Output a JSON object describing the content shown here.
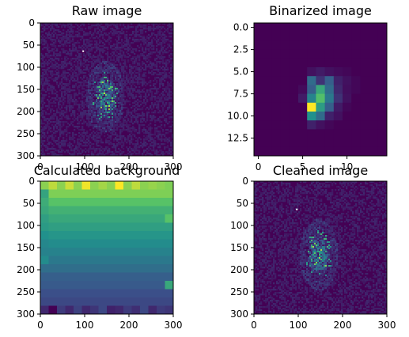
{
  "chart_data": [
    {
      "type": "heatmap",
      "title": "Raw image",
      "colormap": "viridis",
      "xlim": [
        0,
        300
      ],
      "ylim": [
        300,
        0
      ],
      "xticks": [
        "0",
        "100",
        "200",
        "300"
      ],
      "yticks": [
        "0",
        "50",
        "100",
        "150",
        "200",
        "250",
        "300"
      ],
      "blob_center": [
        145,
        165
      ]
    },
    {
      "type": "heatmap",
      "title": "Binarized image",
      "colormap": "viridis",
      "xlim": [
        -0.5,
        14.5
      ],
      "ylim": [
        14.5,
        -0.5
      ],
      "xticks": [
        "0",
        "5",
        "10"
      ],
      "yticks": [
        "0.0",
        "2.5",
        "5.0",
        "7.5",
        "10.0",
        "12.5"
      ],
      "grid_values": [
        [
          0,
          0,
          0,
          0,
          0,
          0,
          0,
          0,
          0,
          0,
          0,
          0,
          0,
          0,
          0
        ],
        [
          0,
          0,
          0,
          0,
          0,
          0,
          0,
          0,
          0,
          0,
          0,
          0,
          0,
          0,
          0
        ],
        [
          0,
          0,
          0,
          0,
          0,
          0,
          0,
          0,
          0,
          0,
          0,
          0,
          0,
          0,
          0
        ],
        [
          0,
          0,
          0,
          0,
          0,
          0,
          0,
          0,
          0,
          0,
          0,
          0,
          0,
          0,
          0
        ],
        [
          0,
          0,
          0,
          0,
          0,
          0,
          0,
          0,
          0,
          0,
          0,
          0,
          0,
          0,
          0
        ],
        [
          0,
          0,
          0,
          0,
          0,
          0,
          0.05,
          0.08,
          0.05,
          0.03,
          0.02,
          0,
          0,
          0,
          0
        ],
        [
          0,
          0,
          0,
          0,
          0,
          0,
          0.35,
          0.15,
          0.3,
          0.1,
          0.05,
          0.02,
          0,
          0,
          0
        ],
        [
          0,
          0,
          0,
          0,
          0,
          0.03,
          0.3,
          0.6,
          0.35,
          0.12,
          0.04,
          0.02,
          0,
          0,
          0
        ],
        [
          0,
          0,
          0,
          0,
          0,
          0.08,
          0.45,
          0.7,
          0.4,
          0.15,
          0.05,
          0,
          0,
          0,
          0
        ],
        [
          0,
          0,
          0,
          0,
          0,
          0,
          1.0,
          0.55,
          0.3,
          0.08,
          0.02,
          0,
          0,
          0,
          0
        ],
        [
          0,
          0,
          0,
          0,
          0,
          0,
          0.5,
          0.35,
          0.1,
          0.05,
          0,
          0,
          0,
          0,
          0
        ],
        [
          0,
          0,
          0,
          0,
          0,
          0,
          0.1,
          0.05,
          0.02,
          0,
          0,
          0,
          0,
          0,
          0
        ],
        [
          0,
          0,
          0,
          0,
          0,
          0,
          0,
          0,
          0,
          0,
          0,
          0,
          0,
          0,
          0
        ],
        [
          0,
          0,
          0,
          0,
          0,
          0,
          0,
          0,
          0,
          0,
          0,
          0,
          0,
          0,
          0
        ],
        [
          0,
          0,
          0,
          0,
          0,
          0,
          0,
          0,
          0,
          0,
          0,
          0,
          0,
          0,
          0
        ]
      ]
    },
    {
      "type": "heatmap",
      "title": "Calculated background",
      "colormap": "viridis",
      "xlim": [
        0,
        300
      ],
      "ylim": [
        300,
        0
      ],
      "xticks": [
        "0",
        "100",
        "200",
        "300"
      ],
      "yticks": [
        "0",
        "50",
        "100",
        "150",
        "200",
        "250",
        "300"
      ],
      "grid_values": [
        [
          0.82,
          0.9,
          0.82,
          0.92,
          0.82,
          0.98,
          0.82,
          0.86,
          0.82,
          1.0,
          0.82,
          0.9,
          0.82,
          0.84,
          0.82,
          0.8
        ],
        [
          0.58,
          0.8,
          0.8,
          0.8,
          0.8,
          0.8,
          0.8,
          0.8,
          0.8,
          0.8,
          0.8,
          0.8,
          0.8,
          0.8,
          0.8,
          0.8
        ],
        [
          0.62,
          0.72,
          0.72,
          0.72,
          0.72,
          0.72,
          0.72,
          0.72,
          0.72,
          0.72,
          0.72,
          0.72,
          0.72,
          0.72,
          0.72,
          0.72
        ],
        [
          0.6,
          0.64,
          0.64,
          0.64,
          0.64,
          0.64,
          0.64,
          0.64,
          0.64,
          0.64,
          0.64,
          0.64,
          0.64,
          0.64,
          0.64,
          0.64
        ],
        [
          0.56,
          0.6,
          0.6,
          0.6,
          0.6,
          0.6,
          0.6,
          0.6,
          0.6,
          0.6,
          0.6,
          0.6,
          0.6,
          0.6,
          0.6,
          0.72
        ],
        [
          0.54,
          0.56,
          0.56,
          0.56,
          0.56,
          0.56,
          0.56,
          0.56,
          0.56,
          0.56,
          0.56,
          0.56,
          0.56,
          0.56,
          0.56,
          0.56
        ],
        [
          0.5,
          0.52,
          0.52,
          0.52,
          0.52,
          0.52,
          0.52,
          0.52,
          0.52,
          0.52,
          0.52,
          0.52,
          0.52,
          0.52,
          0.52,
          0.52
        ],
        [
          0.46,
          0.48,
          0.48,
          0.48,
          0.48,
          0.48,
          0.48,
          0.48,
          0.48,
          0.48,
          0.48,
          0.48,
          0.48,
          0.48,
          0.48,
          0.48
        ],
        [
          0.44,
          0.44,
          0.44,
          0.44,
          0.44,
          0.44,
          0.44,
          0.44,
          0.44,
          0.44,
          0.44,
          0.44,
          0.44,
          0.44,
          0.44,
          0.44
        ],
        [
          0.48,
          0.4,
          0.4,
          0.4,
          0.4,
          0.4,
          0.4,
          0.4,
          0.4,
          0.4,
          0.4,
          0.4,
          0.4,
          0.4,
          0.4,
          0.4
        ],
        [
          0.36,
          0.36,
          0.36,
          0.36,
          0.36,
          0.36,
          0.36,
          0.36,
          0.36,
          0.36,
          0.36,
          0.36,
          0.36,
          0.36,
          0.36,
          0.36
        ],
        [
          0.3,
          0.3,
          0.3,
          0.3,
          0.3,
          0.3,
          0.3,
          0.3,
          0.3,
          0.3,
          0.3,
          0.3,
          0.3,
          0.3,
          0.3,
          0.3
        ],
        [
          0.28,
          0.28,
          0.28,
          0.28,
          0.28,
          0.28,
          0.28,
          0.28,
          0.28,
          0.28,
          0.28,
          0.28,
          0.28,
          0.28,
          0.28,
          0.6
        ],
        [
          0.24,
          0.24,
          0.24,
          0.24,
          0.24,
          0.24,
          0.24,
          0.24,
          0.24,
          0.24,
          0.24,
          0.24,
          0.24,
          0.24,
          0.24,
          0.24
        ],
        [
          0.22,
          0.22,
          0.22,
          0.22,
          0.22,
          0.22,
          0.22,
          0.22,
          0.22,
          0.22,
          0.22,
          0.22,
          0.22,
          0.22,
          0.22,
          0.22
        ],
        [
          0.12,
          0.0,
          0.18,
          0.12,
          0.2,
          0.12,
          0.16,
          0.22,
          0.1,
          0.12,
          0.18,
          0.14,
          0.22,
          0.12,
          0.18,
          0.16
        ]
      ]
    },
    {
      "type": "heatmap",
      "title": "Cleaned image",
      "colormap": "viridis",
      "xlim": [
        0,
        300
      ],
      "ylim": [
        300,
        0
      ],
      "xticks": [
        "0",
        "100",
        "200",
        "300"
      ],
      "yticks": [
        "0",
        "50",
        "100",
        "150",
        "200",
        "250",
        "300"
      ],
      "blob_center": [
        145,
        165
      ]
    }
  ]
}
